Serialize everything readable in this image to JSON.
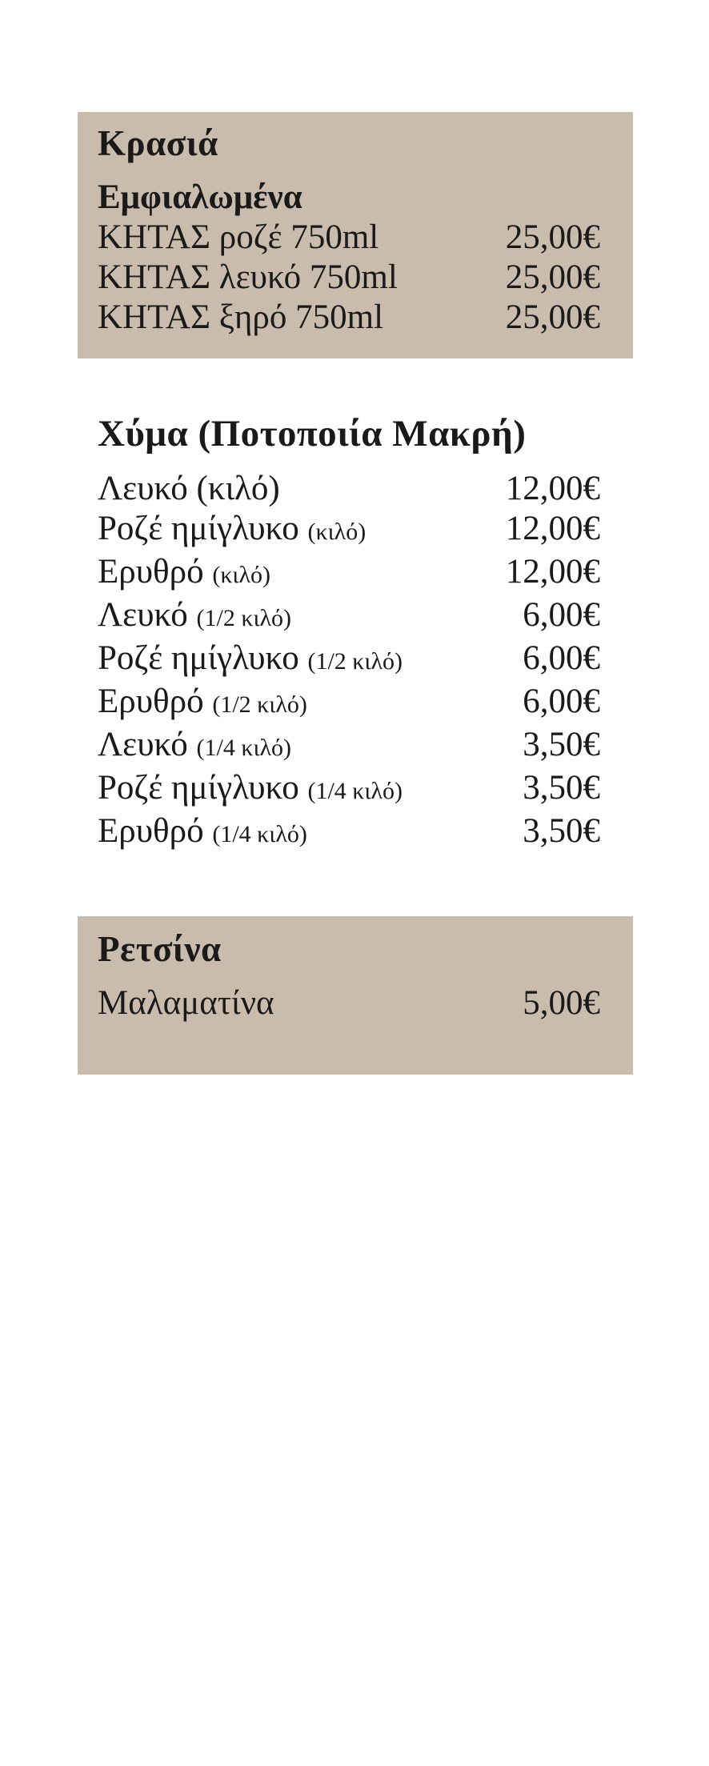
{
  "page": {
    "background": "#ffffff",
    "panel_color": "#c9bcad",
    "text_color": "#1a1a1a",
    "currency_symbol": "€"
  },
  "sections": [
    {
      "id": "wines",
      "style": "panel",
      "title": "Κρασιά",
      "subtitle": "Εμφιαλωμένα",
      "items": [
        {
          "name": "ΚΗΤΑΣ ροζέ 750ml",
          "note": "",
          "price": "25,00€"
        },
        {
          "name": "ΚΗΤΑΣ λευκό 750ml",
          "note": "",
          "price": "25,00€"
        },
        {
          "name": "ΚΗΤΑΣ ξηρό 750ml",
          "note": "",
          "price": "25,00€"
        }
      ]
    },
    {
      "id": "bulk",
      "style": "plain",
      "title": "Χύμα (Ποτοποιία Μακρή)",
      "subtitle": "",
      "items": [
        {
          "name": "Λευκό (κιλό)",
          "note": "",
          "price": "12,00€"
        },
        {
          "name": "Ροζέ ημίγλυκο",
          "note": "(κιλό)",
          "price": "12,00€"
        },
        {
          "name": "Ερυθρό",
          "note": "(κιλό)",
          "price": "12,00€"
        },
        {
          "name": "Λευκό",
          "note": "(1/2 κιλό)",
          "price": "6,00€"
        },
        {
          "name": "Ροζέ ημίγλυκο",
          "note": "(1/2 κιλό)",
          "price": "6,00€"
        },
        {
          "name": "Ερυθρό",
          "note": "(1/2 κιλό)",
          "price": "6,00€"
        },
        {
          "name": "Λευκό",
          "note": "(1/4 κιλό)",
          "price": "3,50€"
        },
        {
          "name": "Ροζέ ημίγλυκο",
          "note": "(1/4 κιλό)",
          "price": "3,50€"
        },
        {
          "name": "Ερυθρό",
          "note": "(1/4 κιλό)",
          "price": "3,50€"
        }
      ]
    },
    {
      "id": "retsina",
      "style": "panel",
      "title": "Ρετσίνα",
      "subtitle": "",
      "items": [
        {
          "name": "Μαλαματίνα",
          "note": "",
          "price": "5,00€"
        }
      ]
    }
  ]
}
